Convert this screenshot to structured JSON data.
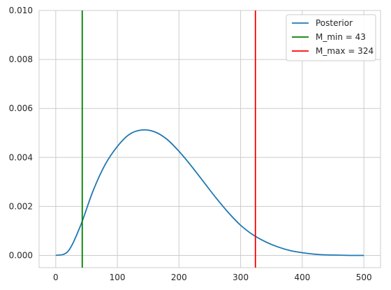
{
  "chart_data": {
    "type": "line",
    "title": "",
    "xlabel": "",
    "ylabel": "",
    "xlim": [
      -27,
      527
    ],
    "ylim": [
      -0.0005,
      0.01
    ],
    "xticks": [
      0,
      100,
      200,
      300,
      400,
      500
    ],
    "xtick_labels": [
      "0",
      "100",
      "200",
      "300",
      "400",
      "500"
    ],
    "yticks": [
      0.0,
      0.002,
      0.004,
      0.006,
      0.008,
      0.01
    ],
    "ytick_labels": [
      "0.000",
      "0.002",
      "0.004",
      "0.006",
      "0.008",
      "0.010"
    ],
    "grid": true,
    "legend_position": "top-right",
    "series": [
      {
        "name": "Posterior",
        "color": "#1f77b4",
        "x": [
          0,
          20,
          40,
          60,
          80,
          100,
          120,
          140,
          160,
          180,
          200,
          220,
          240,
          260,
          280,
          300,
          320,
          340,
          360,
          380,
          400,
          420,
          440,
          460,
          480,
          500
        ],
        "y": [
          0.0,
          0.00017,
          0.0012,
          0.0026,
          0.0037,
          0.00445,
          0.00495,
          0.00512,
          0.00505,
          0.00475,
          0.00425,
          0.00365,
          0.003,
          0.00235,
          0.00175,
          0.00123,
          0.00084,
          0.00056,
          0.00035,
          0.0002,
          0.00011,
          5e-05,
          2e-05,
          1e-05,
          0.0,
          0.0
        ]
      }
    ],
    "vlines": [
      {
        "name": "M_min = 43",
        "x": 43,
        "color": "#008000"
      },
      {
        "name": "M_max = 324",
        "x": 324,
        "color": "#ff0000"
      }
    ]
  }
}
